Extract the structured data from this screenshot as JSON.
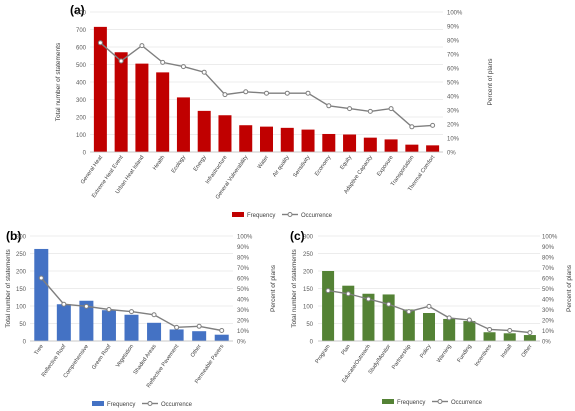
{
  "chart_data": [
    {
      "panel_label": "(a)",
      "type": "bar+line",
      "ylabel": "Total number of statements",
      "y2label": "Percent of plans",
      "ylim": [
        0,
        800
      ],
      "yticks": [
        0,
        100,
        200,
        300,
        400,
        500,
        600,
        700,
        800
      ],
      "y2lim": [
        0,
        100
      ],
      "y2ticks": [
        "0%",
        "10%",
        "20%",
        "30%",
        "40%",
        "50%",
        "60%",
        "70%",
        "80%",
        "90%",
        "100%"
      ],
      "categories": [
        "General Heat",
        "Extreme Heat Event",
        "Urban Heat Island",
        "Health",
        "Ecology",
        "Energy",
        "Infrastructure",
        "General Vulnerability",
        "Water",
        "Air quality",
        "Sensitivity",
        "Economy",
        "Equity",
        "Adaptive Capacity",
        "Exposure",
        "Transportation",
        "Thermal Comfort"
      ],
      "series": [
        {
          "name": "Frequency",
          "kind": "bar",
          "axis": "left",
          "color": "#c00000",
          "values": [
            715,
            570,
            505,
            455,
            312,
            235,
            210,
            153,
            145,
            138,
            128,
            103,
            100,
            82,
            72,
            42,
            38
          ]
        },
        {
          "name": "Occurrence",
          "kind": "line",
          "axis": "right",
          "color": "#7f7f7f",
          "values": [
            78,
            65,
            76,
            64,
            61,
            57,
            41,
            43,
            42,
            42,
            42,
            33,
            31,
            29,
            31,
            18,
            19
          ]
        }
      ],
      "legend": {
        "position": "bottom",
        "labels": [
          "Frequency",
          "Occurrence"
        ]
      }
    },
    {
      "panel_label": "(b)",
      "type": "bar+line",
      "ylabel": "Total number of statements",
      "y2label": "Percent of plans",
      "ylim": [
        0,
        300
      ],
      "yticks": [
        0,
        50,
        100,
        150,
        200,
        250,
        300
      ],
      "y2lim": [
        0,
        100
      ],
      "y2ticks": [
        "0%",
        "10%",
        "20%",
        "30%",
        "40%",
        "50%",
        "60%",
        "70%",
        "80%",
        "90%",
        "100%"
      ],
      "categories": [
        "Tree",
        "Reflective Roof",
        "Comprehensive",
        "Green Roof",
        "Vegetation",
        "Shaded Areas",
        "Reflective Pavement",
        "Other",
        "Permeable Pavers"
      ],
      "series": [
        {
          "name": "Frequency",
          "kind": "bar",
          "axis": "left",
          "color": "#4472c4",
          "values": [
            263,
            105,
            115,
            88,
            75,
            52,
            33,
            28,
            18
          ]
        },
        {
          "name": "Occurrence",
          "kind": "line",
          "axis": "right",
          "color": "#7f7f7f",
          "values": [
            60,
            35,
            33,
            30,
            28,
            25,
            13,
            14,
            10
          ]
        }
      ],
      "legend": {
        "position": "bottom",
        "labels": [
          "Frequency",
          "Occurrence"
        ]
      }
    },
    {
      "panel_label": "(c)",
      "type": "bar+line",
      "ylabel": "Total number of statements",
      "y2label": "Percent of plans",
      "ylim": [
        0,
        300
      ],
      "yticks": [
        0,
        50,
        100,
        150,
        200,
        250,
        300
      ],
      "y2lim": [
        0,
        100
      ],
      "y2ticks": [
        "0%",
        "10%",
        "20%",
        "30%",
        "40%",
        "50%",
        "60%",
        "70%",
        "80%",
        "90%",
        "100%"
      ],
      "categories": [
        "Program",
        "Plan",
        "Educate/Outreach",
        "Study/Monitor",
        "Partnership",
        "Policy",
        "Warning",
        "Funding",
        "Incentives",
        "Install",
        "Other"
      ],
      "series": [
        {
          "name": "Frequency",
          "kind": "bar",
          "axis": "left",
          "color": "#548235",
          "values": [
            200,
            158,
            135,
            133,
            90,
            80,
            63,
            57,
            25,
            22,
            17
          ]
        },
        {
          "name": "Occurrence",
          "kind": "line",
          "axis": "right",
          "color": "#7f7f7f",
          "values": [
            48,
            45,
            40,
            35,
            28,
            33,
            22,
            20,
            11,
            10,
            8
          ]
        }
      ],
      "legend": {
        "position": "bottom",
        "labels": [
          "Frequency",
          "Occurrence"
        ]
      }
    }
  ]
}
